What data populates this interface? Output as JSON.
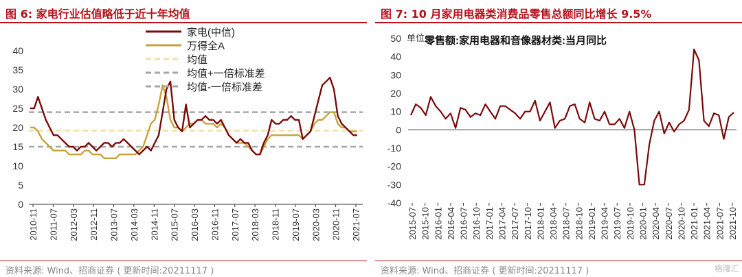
{
  "left": {
    "title": "图 6:  家电行业估值略低于近十年均值",
    "source": "资料来源:  Wind、招商证券 ( 更新时间:20211117 )",
    "chart_data": {
      "type": "line",
      "yticks": [
        "0",
        "5",
        "10",
        "15",
        "20",
        "25",
        "30",
        "35",
        "40"
      ],
      "ylim": [
        0,
        40
      ],
      "xtick_labels": [
        "2010-11",
        "2011-07",
        "2012-03",
        "2012-11",
        "2013-07",
        "2014-03",
        "2014-11",
        "2015-07",
        "2016-03",
        "2016-11",
        "2017-07",
        "2018-03",
        "2018-11",
        "2019-07",
        "2020-03",
        "2020-11",
        "2021-07"
      ],
      "legend": [
        "家电(中信)",
        "万得全A",
        "均值",
        "均值+一倍标准差",
        "均值-一倍标准差"
      ],
      "colors": {
        "jiadian": "#7a0a0a",
        "wande": "#c8a23a",
        "mean": "#f1dfa5",
        "band": "#a6a6a6"
      },
      "mean_line": 19.2,
      "upper_line": 24,
      "lower_line": 15,
      "series": [
        {
          "name": "家电(中信)",
          "values": [
            25,
            25,
            28,
            25,
            22,
            20,
            18,
            18,
            17,
            16,
            15,
            15,
            14,
            15,
            15,
            16,
            15,
            14,
            15,
            16,
            16,
            15,
            16,
            16,
            17,
            16,
            15,
            14,
            13,
            14,
            15,
            14,
            16,
            18,
            24,
            30,
            32,
            22,
            20,
            19,
            26,
            20,
            21,
            22,
            22,
            23,
            22,
            22,
            21,
            22,
            20,
            18,
            17,
            16,
            17,
            16,
            16,
            14,
            13,
            13,
            16,
            18,
            22,
            21,
            21,
            22,
            22,
            23,
            22,
            22,
            17,
            18,
            19,
            23,
            27,
            31,
            32,
            33,
            30,
            23,
            21,
            20,
            19,
            18,
            18
          ]
        },
        {
          "name": "万得全A",
          "values": [
            20,
            20,
            19,
            17,
            16,
            15,
            14,
            14,
            14,
            14,
            13,
            13,
            13,
            13,
            14,
            14,
            13,
            13,
            13,
            12,
            12,
            12,
            12,
            13,
            13,
            13,
            13,
            13,
            14,
            15,
            18,
            21,
            22,
            26,
            31,
            28,
            22,
            20,
            20,
            19,
            20,
            21,
            21,
            22,
            22,
            21,
            21,
            21,
            20,
            21,
            20,
            18,
            17,
            16,
            16,
            16,
            15,
            14,
            13,
            13,
            15,
            17,
            18,
            18,
            18,
            18,
            18,
            18,
            18,
            18,
            17,
            18,
            19,
            21,
            22,
            22,
            23,
            24,
            24,
            21,
            20,
            20,
            19,
            19,
            19
          ]
        }
      ]
    }
  },
  "right": {
    "title": "图 7:  10 月家用电器类消费品零售总额同比增长 9.5%",
    "source": "资料来源:  Wind、招商证券 ( 更新时间:20211117 )",
    "unit_label": "单位:",
    "watermark": "格隆汇",
    "chart_data": {
      "type": "line",
      "yticks": [
        "-40",
        "-30",
        "-20",
        "-10",
        "0",
        "10",
        "20",
        "30",
        "40",
        "50"
      ],
      "ylim": [
        -40,
        50
      ],
      "xtick_labels": [
        "2015-07",
        "2015-10",
        "2016-01",
        "2016-04",
        "2016-07",
        "2016-10",
        "2017-01",
        "2017-04",
        "2017-07",
        "2017-10",
        "2018-01",
        "2018-04",
        "2018-07",
        "2018-10",
        "2019-01",
        "2019-04",
        "2019-07",
        "2019-10",
        "2020-01",
        "2020-04",
        "2020-07",
        "2020-10",
        "2021-01",
        "2021-04",
        "2021-07",
        "2021-10"
      ],
      "legend": [
        "零售额:家用电器和音像器材类:当月同比"
      ],
      "color": "#7a0a0a",
      "series": [
        {
          "name": "零售额:家用电器和音像器材类:当月同比",
          "values": [
            8,
            14,
            12,
            8,
            18,
            13,
            10,
            6,
            9,
            1,
            12,
            11,
            7,
            9,
            8,
            14,
            10,
            6,
            13,
            13,
            11,
            9,
            6,
            10,
            10,
            16,
            5,
            10,
            15,
            1,
            5,
            6,
            13,
            14,
            6,
            4,
            15,
            6,
            5,
            10,
            3,
            3,
            6,
            1,
            10,
            0,
            -30,
            -30,
            -8,
            5,
            10,
            -2,
            4,
            -1,
            3,
            5,
            11,
            44,
            38,
            5,
            2,
            9,
            8,
            -5,
            7,
            9.5
          ]
        }
      ]
    }
  }
}
